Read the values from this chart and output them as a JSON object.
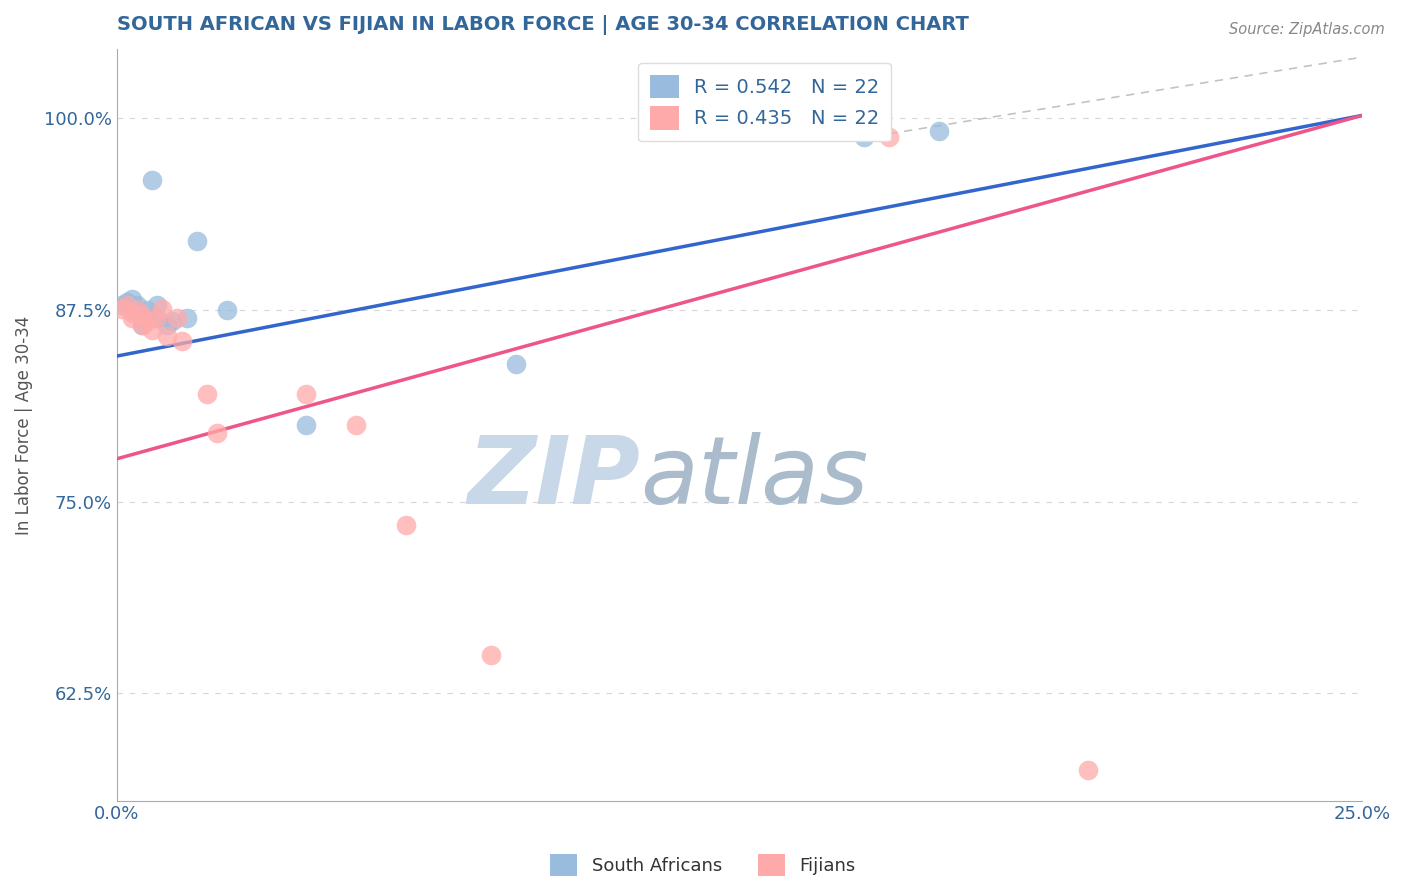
{
  "title": "SOUTH AFRICAN VS FIJIAN IN LABOR FORCE | AGE 30-34 CORRELATION CHART",
  "source": "Source: ZipAtlas.com",
  "xlabel": "",
  "ylabel": "In Labor Force | Age 30-34",
  "xlim": [
    0.0,
    0.25
  ],
  "ylim": [
    0.555,
    1.045
  ],
  "xticks": [
    0.0,
    0.05,
    0.1,
    0.15,
    0.2,
    0.25
  ],
  "xticklabels": [
    "0.0%",
    "",
    "",
    "",
    "",
    "25.0%"
  ],
  "yticks": [
    0.625,
    0.75,
    0.875,
    1.0
  ],
  "yticklabels": [
    "62.5%",
    "75.0%",
    "87.5%",
    "100.0%"
  ],
  "blue_R": 0.542,
  "blue_N": 22,
  "pink_R": 0.435,
  "pink_N": 22,
  "blue_color": "#99BBDD",
  "pink_color": "#FFAAAA",
  "trend_blue": "#3366CC",
  "trend_pink": "#EE5588",
  "blue_scatter_x": [
    0.001,
    0.002,
    0.003,
    0.003,
    0.004,
    0.004,
    0.005,
    0.005,
    0.006,
    0.006,
    0.007,
    0.008,
    0.008,
    0.01,
    0.011,
    0.014,
    0.016,
    0.022,
    0.038,
    0.08,
    0.15,
    0.165
  ],
  "blue_scatter_y": [
    0.878,
    0.88,
    0.875,
    0.882,
    0.875,
    0.878,
    0.87,
    0.865,
    0.875,
    0.87,
    0.96,
    0.878,
    0.87,
    0.865,
    0.868,
    0.87,
    0.92,
    0.875,
    0.8,
    0.84,
    0.988,
    0.992
  ],
  "pink_scatter_x": [
    0.001,
    0.002,
    0.003,
    0.003,
    0.004,
    0.005,
    0.005,
    0.006,
    0.007,
    0.008,
    0.009,
    0.01,
    0.012,
    0.013,
    0.018,
    0.02,
    0.038,
    0.048,
    0.058,
    0.075,
    0.155,
    0.195
  ],
  "pink_scatter_y": [
    0.876,
    0.878,
    0.873,
    0.87,
    0.875,
    0.872,
    0.865,
    0.868,
    0.862,
    0.87,
    0.876,
    0.858,
    0.87,
    0.855,
    0.82,
    0.795,
    0.82,
    0.8,
    0.735,
    0.65,
    0.988,
    0.575
  ],
  "background_color": "#FFFFFF",
  "grid_color": "#CCCCCC",
  "title_color": "#336699",
  "axis_label_color": "#555555",
  "tick_color": "#336699",
  "legend_label_blue": "South Africans",
  "legend_label_pink": "Fijians",
  "watermark_zip": "ZIP",
  "watermark_atlas": "atlas",
  "watermark_color_zip": "#C8D8E8",
  "watermark_color_atlas": "#AABBCC"
}
